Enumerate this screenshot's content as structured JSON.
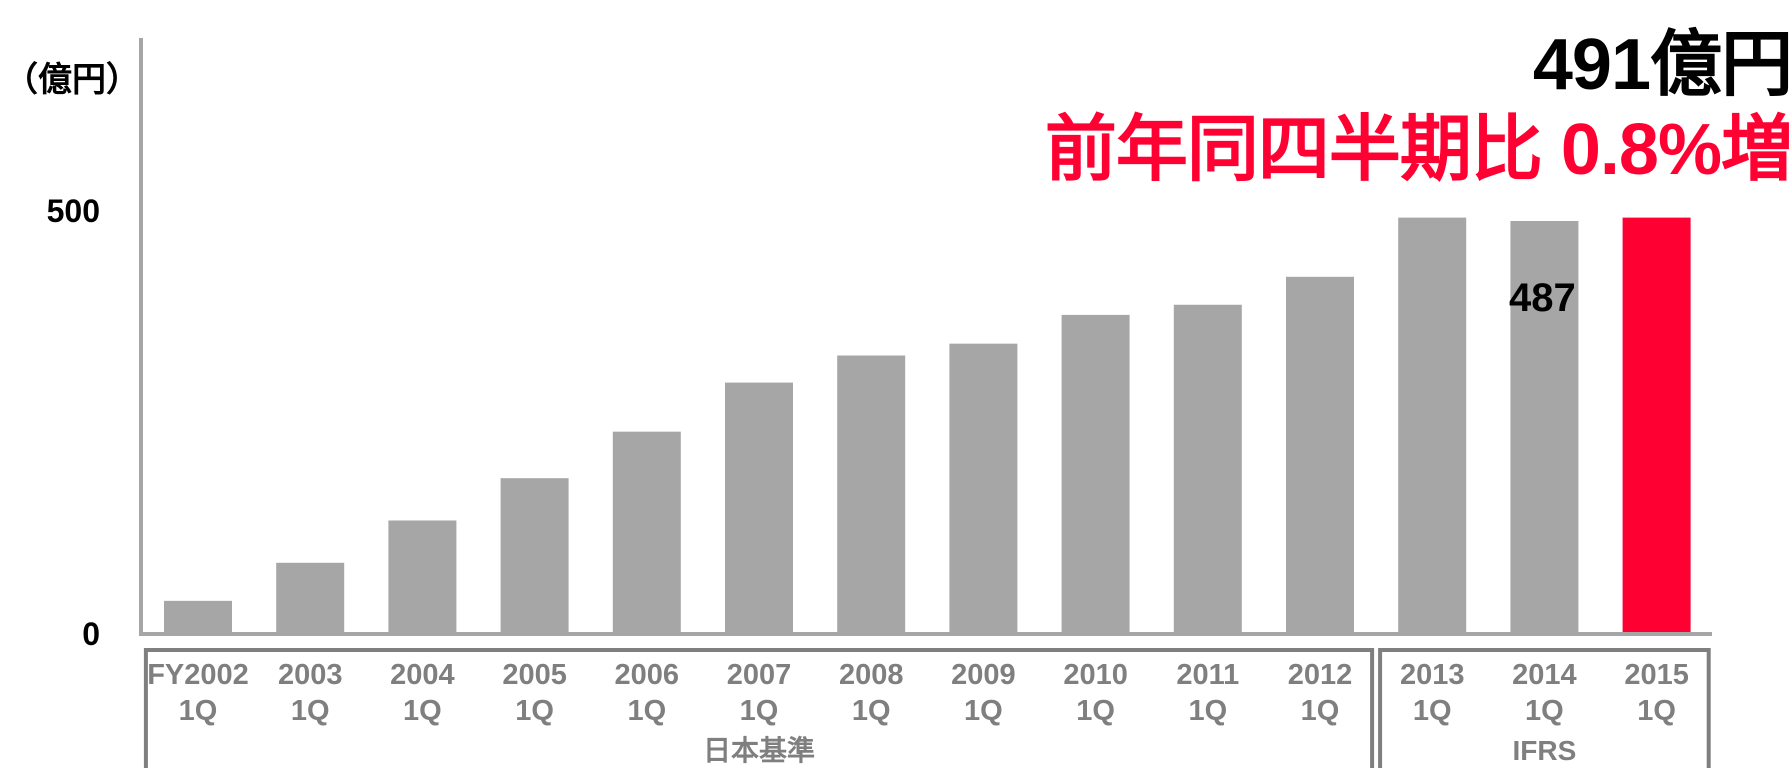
{
  "headline": {
    "total": "491億円",
    "growth": "前年同四半期比 0.8%増"
  },
  "unit_label": "（億円）",
  "colors": {
    "bar": "#a6a6a6",
    "highlight": "#ff0033",
    "axis": "#a6a6a6",
    "group_border": "#7f7f7f",
    "text": "#000000"
  },
  "chart_data": {
    "type": "bar",
    "ylim": [
      0,
      500
    ],
    "yticks": [
      "0",
      "500"
    ],
    "categories": [
      [
        "FY2002",
        "1Q"
      ],
      [
        "2003",
        "1Q"
      ],
      [
        "2004",
        "1Q"
      ],
      [
        "2005",
        "1Q"
      ],
      [
        "2006",
        "1Q"
      ],
      [
        "2007",
        "1Q"
      ],
      [
        "2008",
        "1Q"
      ],
      [
        "2009",
        "1Q"
      ],
      [
        "2010",
        "1Q"
      ],
      [
        "2011",
        "1Q"
      ],
      [
        "2012",
        "1Q"
      ],
      [
        "2013",
        "1Q"
      ],
      [
        "2014",
        "1Q"
      ],
      [
        "2015",
        "1Q"
      ]
    ],
    "values": [
      38,
      83,
      133,
      183,
      238,
      296,
      328,
      342,
      376,
      388,
      421,
      491,
      487,
      491
    ],
    "highlight_index": 13,
    "data_labels": [
      {
        "index": 12,
        "text": "487"
      }
    ],
    "groups": [
      {
        "label": "日本基準",
        "from": 0,
        "to": 10
      },
      {
        "label": "IFRS",
        "from": 11,
        "to": 13
      }
    ]
  }
}
